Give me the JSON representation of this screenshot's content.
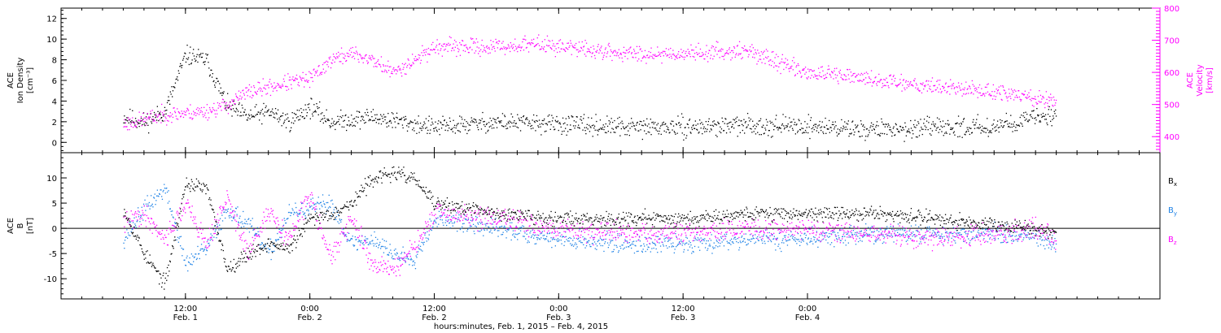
{
  "colors": {
    "black": "#000000",
    "magenta": "#ff00ff",
    "blue": "#1e82e6",
    "axis": "#000000"
  },
  "chart_data": [
    {
      "type": "scatter",
      "panel": "top",
      "ylabel_lines": [
        "ACE",
        "Ion Density",
        "[cm⁻³]"
      ],
      "ylim": [
        -1,
        13
      ],
      "yticks": [
        0,
        2,
        4,
        6,
        8,
        10,
        12
      ],
      "right_axis": {
        "label_lines": [
          "ACE",
          "Velocity",
          "[km/s]"
        ],
        "ylim": [
          350,
          800
        ],
        "yticks": [
          400,
          500,
          600,
          700,
          800
        ]
      },
      "series": [
        {
          "name": "density",
          "axis": "left",
          "color": "black",
          "x": [
            0,
            2,
            4,
            6,
            8,
            10,
            12,
            14,
            16,
            18,
            20,
            24,
            30,
            36,
            42,
            48,
            54,
            60,
            66,
            72,
            78,
            84,
            90
          ],
          "y": [
            2.5,
            2.0,
            3.0,
            8.5,
            8.0,
            3.5,
            2.5,
            3.0,
            2.0,
            3.5,
            2.0,
            2.5,
            1.5,
            2.0,
            1.8,
            1.5,
            1.5,
            1.7,
            1.6,
            1.3,
            1.4,
            1.6,
            2.8
          ]
        },
        {
          "name": "velocity",
          "axis": "right",
          "color": "magenta",
          "x": [
            0,
            4,
            8,
            10,
            12,
            16,
            18,
            20,
            22,
            24,
            26,
            30,
            36,
            40,
            48,
            54,
            60,
            66,
            72,
            78,
            84,
            90
          ],
          "y": [
            440,
            470,
            480,
            500,
            540,
            570,
            580,
            640,
            660,
            640,
            600,
            680,
            680,
            690,
            660,
            660,
            670,
            600,
            580,
            560,
            540,
            510
          ]
        }
      ]
    },
    {
      "type": "scatter",
      "panel": "bottom",
      "ylabel_lines": [
        "ACE",
        "B",
        "[nT]"
      ],
      "ylim": [
        -14,
        15
      ],
      "yticks": [
        -10,
        -5,
        0,
        5,
        10
      ],
      "series": [
        {
          "name": "Bx",
          "color": "black",
          "x": [
            0,
            2,
            4,
            6,
            8,
            10,
            12,
            14,
            16,
            18,
            20,
            22,
            24,
            26,
            28,
            30,
            36,
            42,
            48,
            54,
            60,
            66,
            72,
            78,
            84,
            88,
            90
          ],
          "y": [
            4,
            -5,
            -11,
            9,
            8,
            -8,
            -5,
            -3,
            -4,
            2,
            3,
            5,
            10,
            11,
            10,
            5,
            3,
            2,
            2,
            2,
            3,
            3,
            3,
            2,
            1,
            0,
            -1
          ]
        },
        {
          "name": "By",
          "color": "blue",
          "x": [
            0,
            2,
            4,
            6,
            8,
            10,
            12,
            14,
            16,
            18,
            20,
            22,
            24,
            26,
            28,
            30,
            36,
            42,
            48,
            54,
            60,
            66,
            72,
            78,
            84,
            88,
            90
          ],
          "y": [
            -2,
            4,
            8,
            -7,
            -4,
            4,
            1,
            -5,
            3,
            4,
            5,
            -3,
            -2,
            -5,
            -6,
            2,
            0,
            -2,
            -3,
            -3,
            -2,
            -2,
            -1,
            -1,
            -1,
            -2,
            -3
          ]
        },
        {
          "name": "Bz",
          "color": "magenta",
          "x": [
            0,
            2,
            4,
            6,
            8,
            10,
            12,
            14,
            16,
            18,
            20,
            22,
            24,
            26,
            28,
            30,
            36,
            42,
            48,
            54,
            60,
            66,
            72,
            78,
            84,
            88,
            90
          ],
          "y": [
            1,
            3,
            -2,
            5,
            -3,
            6,
            -5,
            3,
            -2,
            7,
            -6,
            2,
            -7,
            -8,
            -4,
            3,
            2,
            0,
            -1,
            -1,
            0,
            0,
            -1,
            -2,
            -1,
            0,
            -2
          ]
        }
      ],
      "legend": [
        {
          "text": "B",
          "sub": "x",
          "color": "black"
        },
        {
          "text": "B",
          "sub": "y",
          "color": "blue"
        },
        {
          "text": "B",
          "sub": "z",
          "color": "magenta"
        }
      ]
    }
  ],
  "x_axis": {
    "range_hours": [
      -6,
      100
    ],
    "major_ticks": [
      {
        "hour": 6,
        "time": "12:00",
        "day": "Feb. 1"
      },
      {
        "hour": 18,
        "time": "0:00",
        "day": "Feb. 2"
      },
      {
        "hour": 30,
        "time": "12:00",
        "day": "Feb. 2"
      },
      {
        "hour": 42,
        "time": "0:00",
        "day": "Feb. 3"
      },
      {
        "hour": 54,
        "time": "12:00",
        "day": "Feb. 3"
      },
      {
        "hour": 66,
        "time": "0:00",
        "day": "Feb. 4"
      }
    ],
    "title": "hours:minutes, Feb.  1, 2015 – Feb.  4, 2015"
  }
}
